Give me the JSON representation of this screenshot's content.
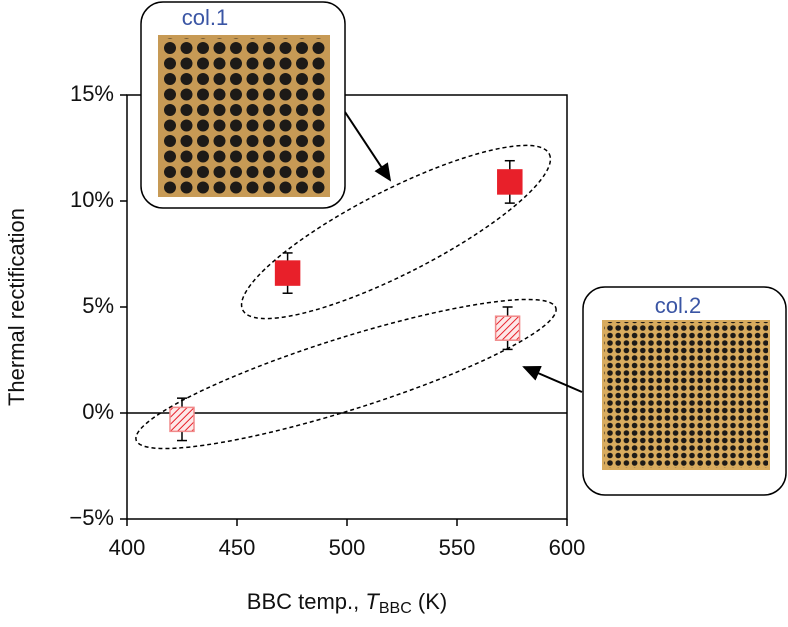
{
  "chart_data": {
    "type": "scatter",
    "y_label": "Thermal rectification",
    "x_label": {
      "text": "BBC temp.,",
      "var": "T",
      "sub": "BBC",
      "unit": "(K)"
    },
    "xlim": [
      400,
      600
    ],
    "xticks": [
      400,
      450,
      500,
      550,
      600
    ],
    "ylim": [
      -5,
      15
    ],
    "yticks": [
      {
        "value": -5,
        "label": "−5%"
      },
      {
        "value": 0,
        "label": "0%"
      },
      {
        "value": 5,
        "label": "5%"
      },
      {
        "value": 10,
        "label": "10%"
      },
      {
        "value": 15,
        "label": "15%"
      }
    ],
    "zero_line": true,
    "series": [
      {
        "name": "col.1",
        "color": "#e8202a",
        "fill": "solid",
        "x": [
          473,
          574
        ],
        "values": [
          6.6,
          10.9
        ],
        "errors": [
          0.95,
          1.0
        ]
      },
      {
        "name": "col.2",
        "color": "#e8202a",
        "fill": "hatched",
        "x": [
          425,
          573
        ],
        "values": [
          -0.3,
          4.0
        ],
        "errors": [
          1.0,
          1.0
        ]
      }
    ]
  }
}
